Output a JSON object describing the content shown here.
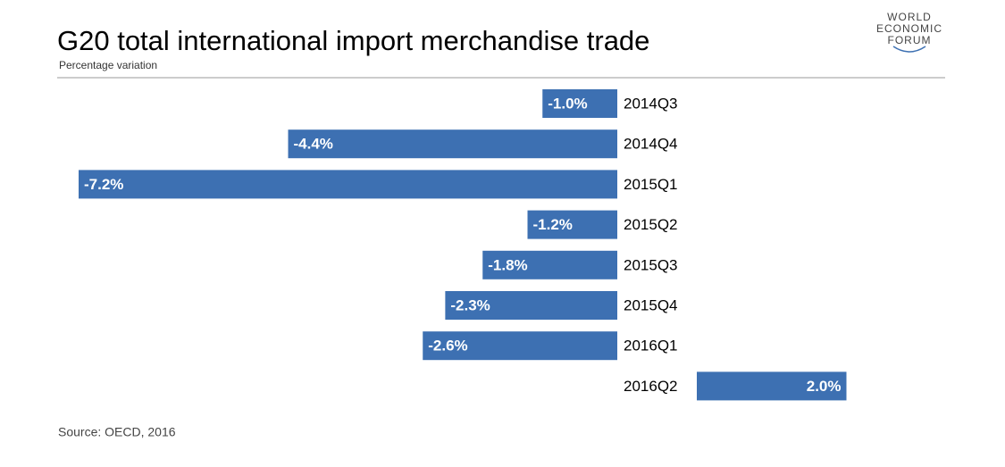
{
  "chart_data": {
    "type": "bar",
    "orientation": "horizontal",
    "title": "G20 total international import merchandise trade",
    "subtitle": "Percentage variation",
    "source": "Source: OECD, 2016",
    "categories": [
      "2014Q3",
      "2014Q4",
      "2015Q1",
      "2015Q2",
      "2015Q3",
      "2015Q4",
      "2016Q1",
      "2016Q2"
    ],
    "values": [
      -1.0,
      -4.4,
      -7.2,
      -1.2,
      -1.8,
      -2.3,
      -2.6,
      2.0
    ],
    "value_labels": [
      "-1.0%",
      "-4.4%",
      "-7.2%",
      "-1.2%",
      "-1.8%",
      "-2.3%",
      "-2.6%",
      "2.0%"
    ],
    "color": "#3d70b2"
  },
  "logo": {
    "lines": [
      "WORLD",
      "ECONOMIC",
      "FORUM"
    ]
  }
}
